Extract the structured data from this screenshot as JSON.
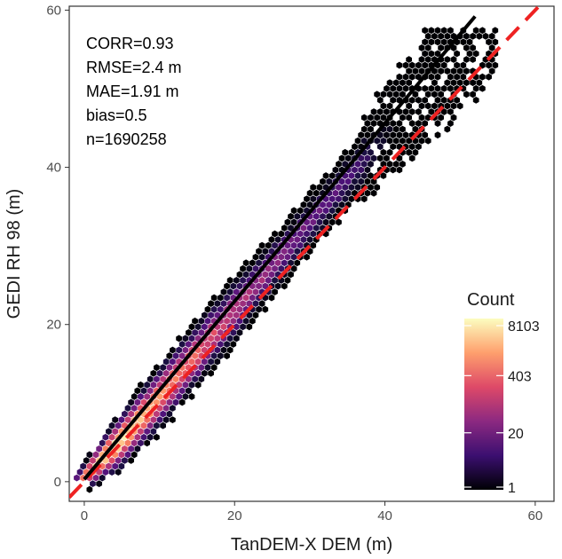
{
  "chart_data": {
    "type": "scatter",
    "subtype": "hexbin-density",
    "xlabel": "TanDEM-X DEM (m)",
    "ylabel": "GEDI RH 98 (m)",
    "xlim": [
      -2,
      62.5
    ],
    "ylim": [
      -2.5,
      60.5
    ],
    "x_ticks": [
      0,
      20,
      40,
      60
    ],
    "y_ticks": [
      0,
      20,
      40,
      60
    ],
    "grid": false,
    "annotations": [
      "CORR=0.93",
      "RMSE=2.4 m",
      "MAE=1.91 m",
      "bias=0.5",
      "n=1690258"
    ],
    "density_center_line": {
      "x": [
        1,
        5,
        10,
        15,
        20,
        25,
        30,
        35,
        40,
        45
      ],
      "y": [
        1.5,
        5.3,
        10.7,
        16.3,
        21.8,
        27.3,
        32.9,
        38.4,
        44.0,
        49.5
      ],
      "half_width": [
        2.0,
        3.2,
        3.6,
        3.7,
        3.6,
        3.4,
        3.1,
        3.2,
        4.0,
        4.6
      ]
    },
    "fit_line": {
      "x": [
        0,
        52
      ],
      "y": [
        0.3,
        59.2
      ],
      "color": "#000000"
    },
    "reference_line": {
      "x": [
        -2,
        62.5
      ],
      "y": [
        -2,
        62.5
      ],
      "color": "#ee2222",
      "style": "dashed"
    },
    "legend": {
      "title": "Count",
      "labels": [
        "8103",
        "403",
        "20",
        "1"
      ],
      "values": [
        8103,
        403,
        20,
        1
      ],
      "scale": "log",
      "placement": "bottom-right",
      "colormap": "magma"
    }
  }
}
